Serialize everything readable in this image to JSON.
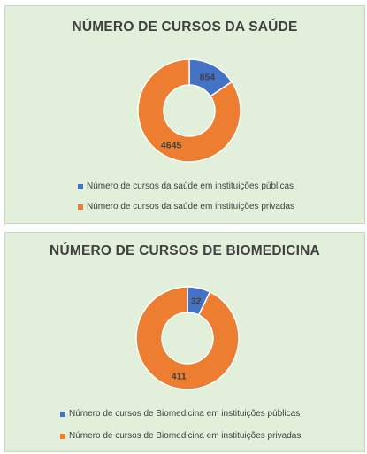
{
  "colors": {
    "public": "#4472c4",
    "private": "#ed7d31",
    "background": "#e2efda",
    "text": "#404040"
  },
  "chart_data": [
    {
      "type": "pie",
      "variant": "donut",
      "title": "NÚMERO DE CURSOS DA SAÚDE",
      "series": [
        {
          "name": "Número de cursos da saúde em instituições públicas",
          "value": 854,
          "color": "#4472c4"
        },
        {
          "name": "Número de cursos da saúde em instituições privadas",
          "value": 4645,
          "color": "#ed7d31"
        }
      ],
      "legend_position": "bottom"
    },
    {
      "type": "pie",
      "variant": "donut",
      "title": "NÚMERO DE CURSOS DE BIOMEDICINA",
      "series": [
        {
          "name": "Número de cursos de Biomedicina em instituições públicas",
          "value": 32,
          "color": "#4472c4"
        },
        {
          "name": "Número de cursos de Biomedicina em instituições privadas",
          "value": 411,
          "color": "#ed7d31"
        }
      ],
      "legend_position": "bottom"
    }
  ]
}
